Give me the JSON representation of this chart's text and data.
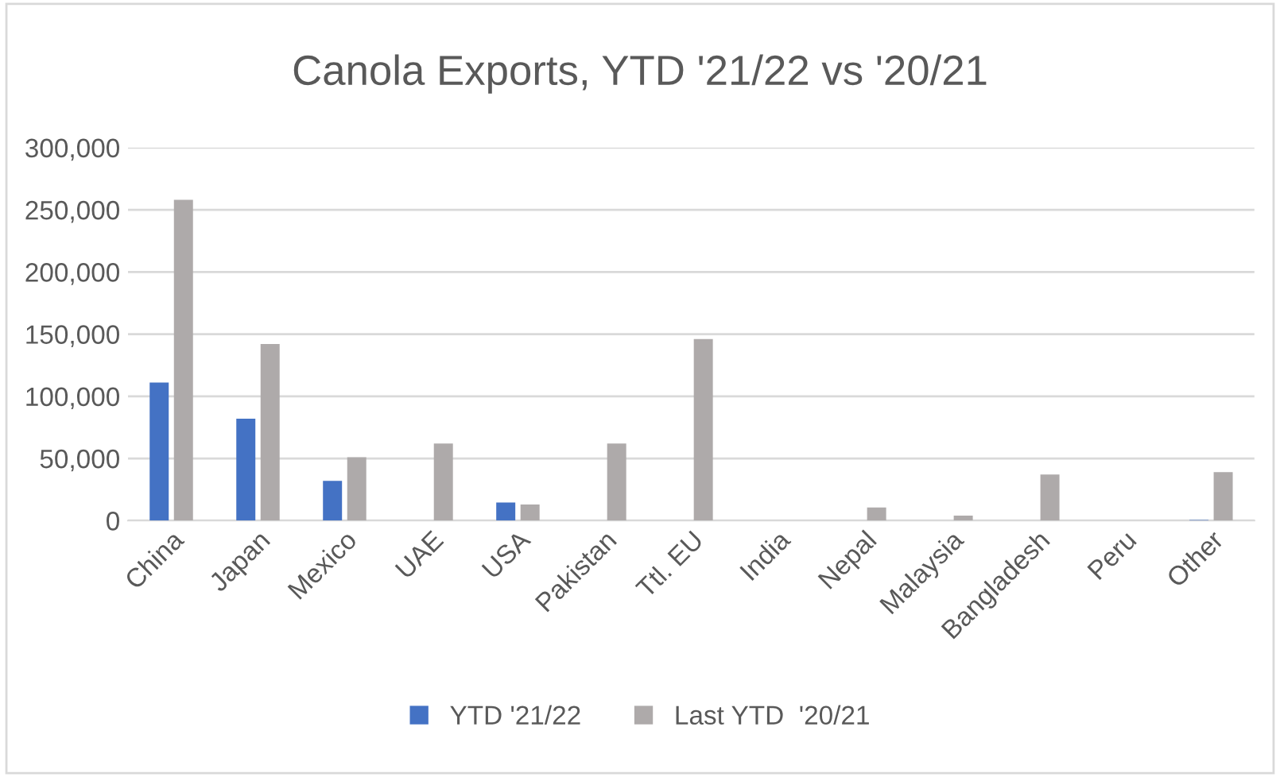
{
  "chart_data": {
    "type": "bar",
    "title": "Canola Exports, YTD '21/22 vs '20/21",
    "categories": [
      "China",
      "Japan",
      "Mexico",
      "UAE",
      "USA",
      "Pakistan",
      "Ttl. EU",
      "India",
      "Nepal",
      "Malaysia",
      "Bangladesh",
      "Peru",
      "Other"
    ],
    "series": [
      {
        "name": "YTD '21/22",
        "color": "#4472c4",
        "values": [
          111000,
          82000,
          32000,
          0,
          14500,
          0,
          0,
          0,
          0,
          0,
          0,
          0,
          500
        ]
      },
      {
        "name": "Last YTD  '20/21",
        "color": "#aeaaaa",
        "values": [
          258000,
          142000,
          51000,
          62000,
          13000,
          62000,
          146000,
          0,
          10500,
          4000,
          37000,
          0,
          39000
        ]
      }
    ],
    "ylim": [
      0,
      300000
    ],
    "yticks": [
      {
        "value": 0,
        "label": "0"
      },
      {
        "value": 50000,
        "label": "50,000"
      },
      {
        "value": 100000,
        "label": "100,000"
      },
      {
        "value": 150000,
        "label": "150,000"
      },
      {
        "value": 200000,
        "label": "200,000"
      },
      {
        "value": 250000,
        "label": "250,000"
      },
      {
        "value": 300000,
        "label": "300,000"
      }
    ],
    "grid": "y",
    "legend": "bottom"
  }
}
